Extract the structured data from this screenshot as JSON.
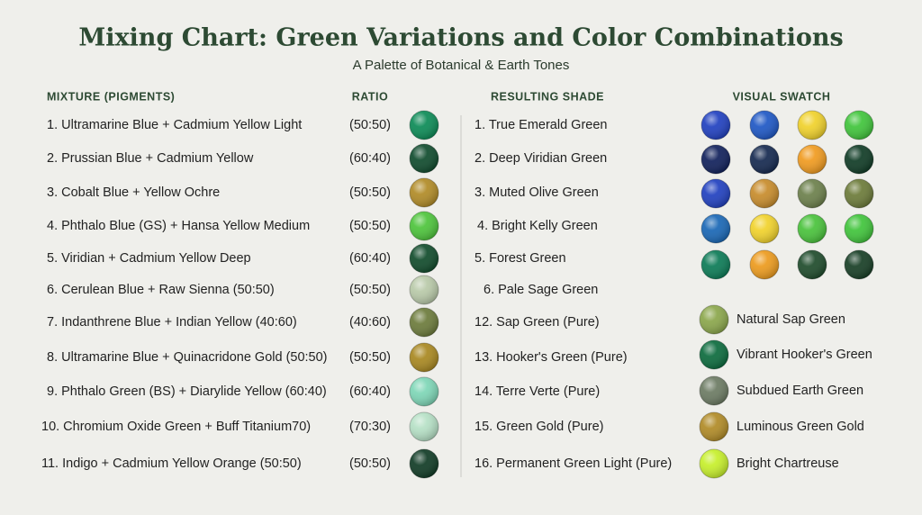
{
  "header": {
    "title": "Mixing Chart: Green Variations and Color Combinations",
    "subtitle": "A Palette of Botanical & Earth Tones"
  },
  "columns": {
    "mixture": "MIXTURE (PIGMENTS)",
    "ratio": "RATIO",
    "shade": "RESULTING SHADE",
    "swatch": "VISUAL SWATCH"
  },
  "mixtures": [
    {
      "text": "1. Ultramarine Blue + Cadmium Yellow Light",
      "ratio": "(50:50)",
      "color": "#0a8a55"
    },
    {
      "text": "2. Prussian Blue + Cadmium Yellow",
      "ratio": "(60:40)",
      "color": "#0e4a2c"
    },
    {
      "text": "3. Cobalt Blue + Yellow Ochre",
      "ratio": "(50:50)",
      "color": "#b08a25"
    },
    {
      "text": "4. Phthalo Blue (GS) + Hansa Yellow Medium",
      "ratio": "(50:50)",
      "color": "#4cc43a"
    },
    {
      "text": "5. Viridian + Cadmium Yellow Deep",
      "ratio": "(60:40)",
      "color": "#0f4a2a"
    },
    {
      "text": "6. Cerulean Blue + Raw Sienna (50:50)",
      "ratio": "(50:50)",
      "color": "#b8c9a8"
    },
    {
      "text": "7. Indanthrene Blue + Indian Yellow (40:60)",
      "ratio": "(40:60)",
      "color": "#6b7a3a"
    },
    {
      "text": "8. Ultramarine Blue + Quinacridone Gold (50:50)",
      "ratio": "(50:50)",
      "color": "#a8871f"
    },
    {
      "text": "9. Phthalo Green (BS) + Diarylide Yellow (60:40)",
      "ratio": "(60:40)",
      "color": "#7dd6b6"
    },
    {
      "text": "10. Chromium Oxide Green + Buff Titanium70)",
      "ratio": "(70:30)",
      "color": "#b5e0c5"
    },
    {
      "text": "11. Indigo + Cadmium Yellow Orange (50:50)",
      "ratio": "(50:50)",
      "color": "#0f3a24"
    }
  ],
  "shades": [
    "1. True Emerald Green",
    "2. Deep Viridian Green",
    "3. Muted Olive Green",
    "4. Bright Kelly Green",
    "5. Forest Green",
    "6. Pale Sage Green",
    "12. Sap Green (Pure)",
    "13. Hooker's Green (Pure)",
    "14. Terre Verte (Pure)",
    "15. Green Gold (Pure)",
    "16. Permanent Green Light (Pure)"
  ],
  "swatch_grid": [
    [
      "#1f3fbf",
      "#1d56c4",
      "#f0d12a",
      "#3fc43a"
    ],
    [
      "#0f1f5a",
      "#13274e",
      "#f09a1e",
      "#0e3a24"
    ],
    [
      "#1f3fbf",
      "#c78b2a",
      "#6b7f4a",
      "#6b7a38"
    ],
    [
      "#1866b5",
      "#f1d22a",
      "#48c23a",
      "#3fc43a"
    ],
    [
      "#0a7a55",
      "#ec9a1c",
      "#1d4a2a",
      "#163d24"
    ]
  ],
  "legend": [
    {
      "label": "Natural Sap Green",
      "color": "#8aa64a"
    },
    {
      "label": "Vibrant Hooker's Green",
      "color": "#0a6a3c"
    },
    {
      "label": "Subdued Earth Green",
      "color": "#6b7a62"
    },
    {
      "label": "Luminous Green Gold",
      "color": "#b08a25"
    },
    {
      "label": "Bright Chartreuse",
      "color": "#c6ef2a"
    }
  ]
}
